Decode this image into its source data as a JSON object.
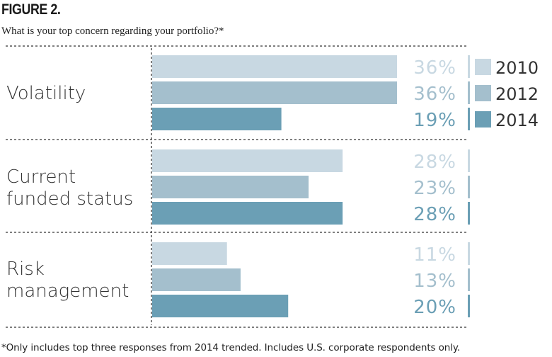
{
  "figure": {
    "label": "FIGURE 2.",
    "subtitle": "What is your top concern regarding your portfolio?*",
    "footnote": "*Only includes top three responses from 2014 trended. Includes U.S. corporate respondents only."
  },
  "chart_data": {
    "type": "bar",
    "orientation": "horizontal",
    "title": "What is your top concern regarding your portfolio?*",
    "categories": [
      [
        "Volatility"
      ],
      [
        "Current",
        "funded status"
      ],
      [
        "Risk",
        "management"
      ]
    ],
    "series": [
      {
        "name": "2010",
        "values": [
          36,
          28,
          11
        ],
        "labels": [
          "36%",
          "28%",
          "11%"
        ],
        "color": "#c8d8e2"
      },
      {
        "name": "2012",
        "values": [
          36,
          23,
          13
        ],
        "labels": [
          "36%",
          "23%",
          "13%"
        ],
        "color": "#a4bfcd"
      },
      {
        "name": "2014",
        "values": [
          19,
          28,
          20
        ],
        "labels": [
          "19%",
          "28%",
          "20%"
        ],
        "color": "#6b9fb5"
      }
    ],
    "value_unit": "%",
    "xlim": [
      0,
      36
    ],
    "legend": "top-right",
    "grid": false
  }
}
